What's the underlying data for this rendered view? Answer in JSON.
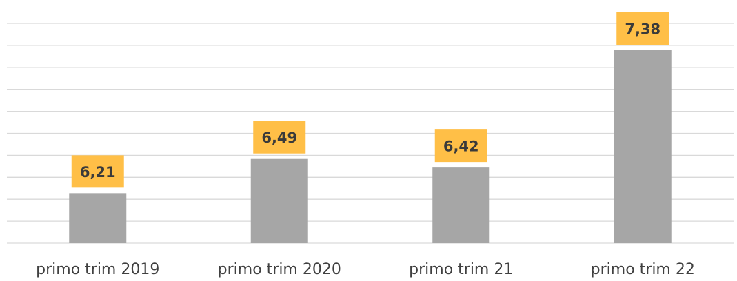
{
  "chart_data": {
    "type": "bar",
    "categories": [
      "primo trim 2019",
      "primo trim 2020",
      "primo trim 21",
      "primo trim 22"
    ],
    "values": [
      6.21,
      6.49,
      6.42,
      7.38
    ],
    "data_labels": [
      "6,21",
      "6,49",
      "6,42",
      "7,38"
    ],
    "ylim": [
      5.8,
      7.6
    ],
    "grid": true,
    "legend": "none",
    "colors": {
      "bar": "#a6a6a6",
      "label_box": "#ffbf47",
      "gridline": "#d9d9d9"
    }
  }
}
